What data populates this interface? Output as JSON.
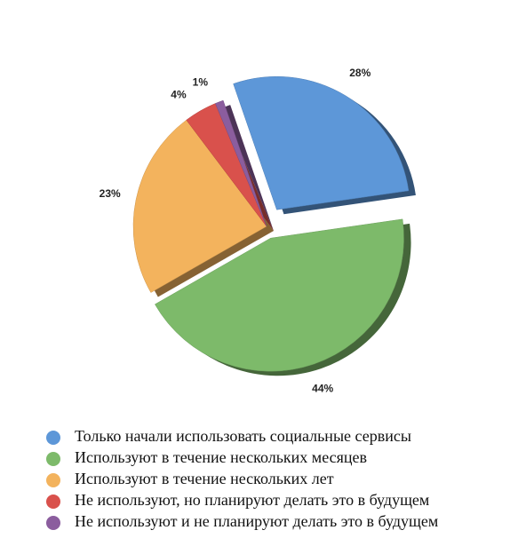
{
  "chart_data": {
    "type": "pie",
    "categories": [
      "Только начали использовать социальные сервисы",
      "Используют в течение нескольких месяцев",
      "Используют в течение нескольких лет",
      "Не используют, но планируют делать это в будущем",
      "Не используют и не планируют делать это в будущем"
    ],
    "values": [
      28,
      44,
      23,
      4,
      1
    ],
    "value_labels": [
      "28%",
      "44%",
      "23%",
      "4%",
      "1%"
    ],
    "colors": [
      "#5d97d8",
      "#7dba6a",
      "#f3b35d",
      "#d9514c",
      "#8b5d9e"
    ],
    "legend": "bottom"
  }
}
